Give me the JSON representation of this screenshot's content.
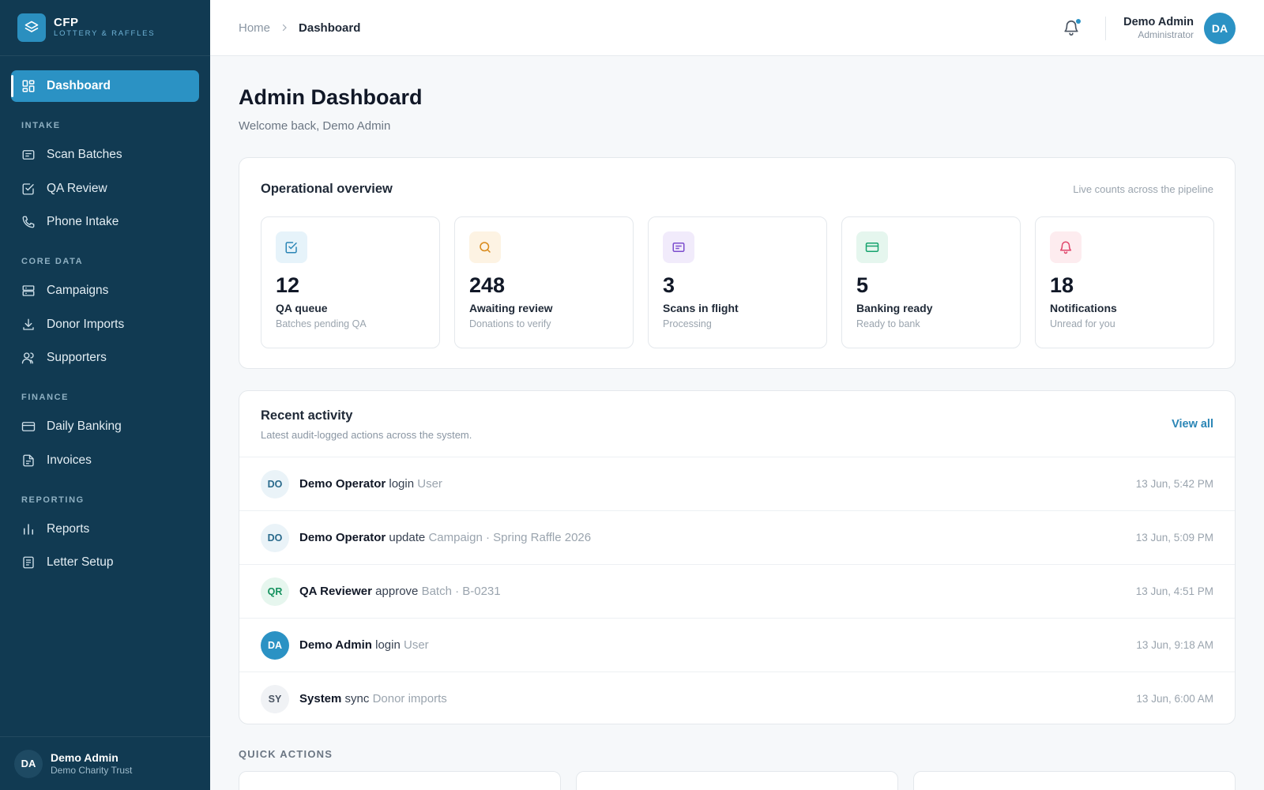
{
  "brand": {
    "name": "CFP",
    "subtitle": "LOTTERY & RAFFLES"
  },
  "sidebar": {
    "active": {
      "label": "Dashboard",
      "icon": "dashboard-grid-icon"
    },
    "sections": [
      {
        "title": "INTAKE",
        "items": [
          {
            "label": "Scan Batches",
            "icon": "scan-icon"
          },
          {
            "label": "QA Review",
            "icon": "checkbox-icon"
          },
          {
            "label": "Phone Intake",
            "icon": "phone-icon"
          }
        ]
      },
      {
        "title": "CORE DATA",
        "items": [
          {
            "label": "Campaigns",
            "icon": "campaigns-icon"
          },
          {
            "label": "Donor Imports",
            "icon": "download-icon"
          },
          {
            "label": "Supporters",
            "icon": "users-icon"
          }
        ]
      },
      {
        "title": "FINANCE",
        "items": [
          {
            "label": "Daily Banking",
            "icon": "card-icon"
          },
          {
            "label": "Invoices",
            "icon": "document-icon"
          }
        ]
      },
      {
        "title": "REPORTING",
        "items": [
          {
            "label": "Reports",
            "icon": "bar-chart-icon"
          },
          {
            "label": "Letter Setup",
            "icon": "letter-icon"
          }
        ]
      }
    ],
    "user": {
      "initials": "DA",
      "name": "Demo Admin",
      "org": "Demo Charity Trust"
    }
  },
  "header": {
    "breadcrumb": {
      "home": "Home",
      "current": "Dashboard"
    },
    "user": {
      "name": "Demo Admin",
      "role": "Administrator",
      "initials": "DA"
    }
  },
  "page": {
    "title": "Admin Dashboard",
    "subtitle": "Welcome back, Demo Admin"
  },
  "overview": {
    "title": "Operational overview",
    "note": "Live counts across the pipeline",
    "stats": [
      {
        "value": "12",
        "label": "QA queue",
        "sub": "Batches pending QA",
        "icon": "checkbox-icon",
        "color": "#2b86b6",
        "bg": "#e6f3fa"
      },
      {
        "value": "248",
        "label": "Awaiting review",
        "sub": "Donations to verify",
        "icon": "search-icon",
        "color": "#d98a1a",
        "bg": "#fdf3e3"
      },
      {
        "value": "3",
        "label": "Scans in flight",
        "sub": "Processing",
        "icon": "scan-icon",
        "color": "#7c4dce",
        "bg": "#f1ebfb"
      },
      {
        "value": "5",
        "label": "Banking ready",
        "sub": "Ready to bank",
        "icon": "card-icon",
        "color": "#16a36e",
        "bg": "#e5f6ee"
      },
      {
        "value": "18",
        "label": "Notifications",
        "sub": "Unread for you",
        "icon": "bell-icon",
        "color": "#e0456b",
        "bg": "#fdecef"
      }
    ]
  },
  "activity": {
    "title": "Recent activity",
    "subtitle": "Latest audit-logged actions across the system.",
    "view_all": "View all",
    "rows": [
      {
        "initials": "DO",
        "actor": "Demo Operator",
        "action": "login",
        "target": "User",
        "time": "13 Jun, 5:42 PM",
        "avatar_bg": "#eaf3f8",
        "avatar_fg": "#2a6a8c"
      },
      {
        "initials": "DO",
        "actor": "Demo Operator",
        "action": "update",
        "target": "Campaign · Spring Raffle 2026",
        "time": "13 Jun, 5:09 PM",
        "avatar_bg": "#eaf3f8",
        "avatar_fg": "#2a6a8c"
      },
      {
        "initials": "QR",
        "actor": "QA Reviewer",
        "action": "approve",
        "target": "Batch · B-0231",
        "time": "13 Jun, 4:51 PM",
        "avatar_bg": "#e6f6ee",
        "avatar_fg": "#15925f"
      },
      {
        "initials": "DA",
        "actor": "Demo Admin",
        "action": "login",
        "target": "User",
        "time": "13 Jun, 9:18 AM",
        "avatar_bg": "#2b92c4",
        "avatar_fg": "#ffffff"
      },
      {
        "initials": "SY",
        "actor": "System",
        "action": "sync",
        "target": "Donor imports",
        "time": "13 Jun, 6:00 AM",
        "avatar_bg": "#f0f2f5",
        "avatar_fg": "#4b5563"
      }
    ]
  },
  "quick_actions": {
    "title": "QUICK ACTIONS"
  }
}
